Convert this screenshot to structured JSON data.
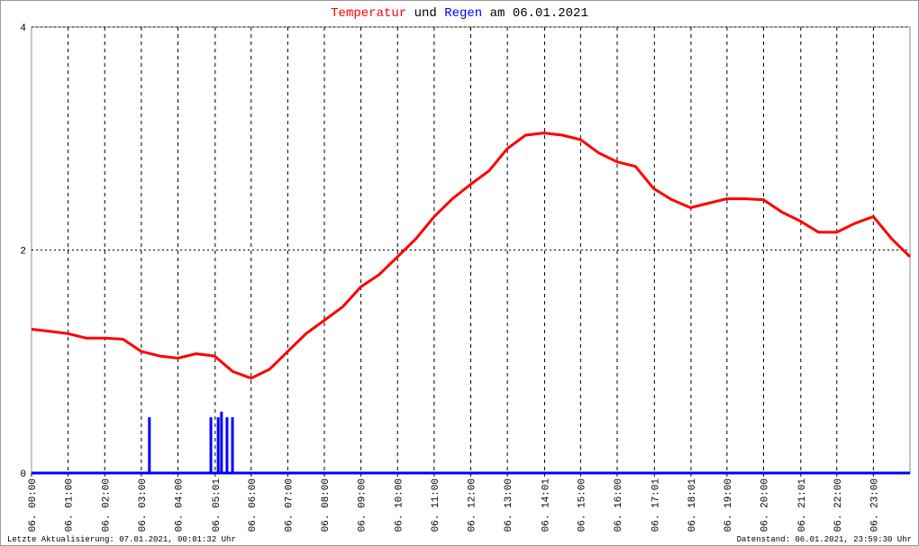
{
  "chart_data": {
    "type": "line",
    "title_parts": [
      "Temperatur",
      "und",
      "Regen",
      "am 06.01.2021"
    ],
    "footer_left": "Letzte Aktualisierung: 07.01.2021, 00:01:32 Uhr",
    "footer_right": "Datenstand: 06.01.2021, 23:59:30 Uhr",
    "xlim": [
      0,
      24
    ],
    "ylim": [
      0,
      4
    ],
    "yticks": [
      0,
      2,
      4
    ],
    "xticks": [
      {
        "value": 0,
        "label": "06. 00:00"
      },
      {
        "value": 1,
        "label": "06. 01:00"
      },
      {
        "value": 2,
        "label": "06. 02:00"
      },
      {
        "value": 3,
        "label": "06. 03:00"
      },
      {
        "value": 4,
        "label": "06. 04:00"
      },
      {
        "value": 5.017,
        "label": "06. 05:01"
      },
      {
        "value": 6,
        "label": "06. 06:00"
      },
      {
        "value": 7,
        "label": "06. 07:00"
      },
      {
        "value": 8,
        "label": "06. 08:00"
      },
      {
        "value": 9,
        "label": "06. 09:00"
      },
      {
        "value": 10,
        "label": "06. 10:00"
      },
      {
        "value": 11,
        "label": "06. 11:00"
      },
      {
        "value": 12,
        "label": "06. 12:00"
      },
      {
        "value": 13,
        "label": "06. 13:00"
      },
      {
        "value": 14.017,
        "label": "06. 14:01"
      },
      {
        "value": 15,
        "label": "06. 15:00"
      },
      {
        "value": 16,
        "label": "06. 16:00"
      },
      {
        "value": 17.017,
        "label": "06. 17:01"
      },
      {
        "value": 18.017,
        "label": "06. 18:01"
      },
      {
        "value": 19,
        "label": "06. 19:00"
      },
      {
        "value": 20,
        "label": "06. 20:00"
      },
      {
        "value": 21.017,
        "label": "06. 21:01"
      },
      {
        "value": 22,
        "label": "06. 22:00"
      },
      {
        "value": 23,
        "label": "06. 23:00"
      }
    ],
    "grid": true,
    "series": [
      {
        "name": "Temperatur",
        "color": "#ff0000",
        "kind": "line",
        "x": [
          0,
          0.5,
          1,
          1.5,
          2,
          2.5,
          3,
          3.5,
          4,
          4.5,
          5,
          5.5,
          6,
          6.5,
          7,
          7.5,
          8,
          8.5,
          9,
          9.5,
          10,
          10.5,
          11,
          11.5,
          12,
          12.5,
          13,
          13.5,
          14,
          14.5,
          15,
          15.5,
          16,
          16.5,
          17,
          17.5,
          18,
          18.5,
          19,
          19.5,
          20,
          20.5,
          21,
          21.5,
          22,
          22.5,
          23,
          23.5,
          24
        ],
        "values": [
          1.29,
          1.27,
          1.25,
          1.21,
          1.21,
          1.2,
          1.09,
          1.05,
          1.03,
          1.07,
          1.05,
          0.91,
          0.85,
          0.93,
          1.09,
          1.25,
          1.37,
          1.49,
          1.67,
          1.78,
          1.94,
          2.1,
          2.3,
          2.46,
          2.59,
          2.71,
          2.91,
          3.03,
          3.05,
          3.03,
          2.99,
          2.87,
          2.79,
          2.75,
          2.55,
          2.45,
          2.38,
          2.42,
          2.46,
          2.46,
          2.45,
          2.34,
          2.26,
          2.16,
          2.16,
          2.24,
          2.3,
          2.1,
          1.94
        ]
      },
      {
        "name": "Regen",
        "color": "#0000ff",
        "kind": "bar",
        "x": [
          3.22,
          4.9,
          5.1,
          5.19,
          5.34,
          5.49
        ],
        "values": [
          0.5,
          0.5,
          0.5,
          0.55,
          0.5,
          0.5
        ]
      }
    ]
  }
}
